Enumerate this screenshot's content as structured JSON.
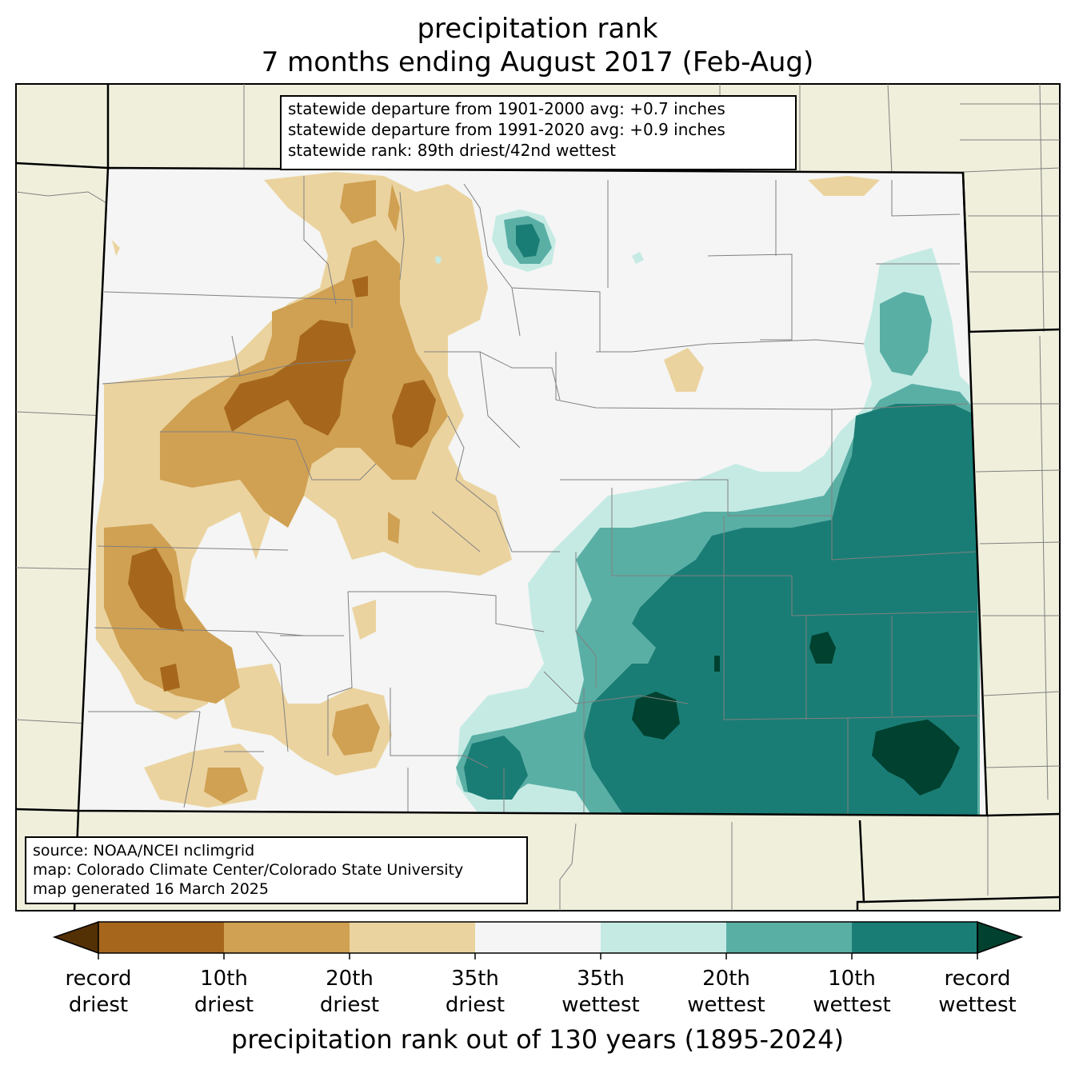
{
  "title": {
    "line1": "precipitation rank",
    "line2": "7 months ending August 2017 (Feb-Aug)"
  },
  "stats_box": {
    "line1": "statewide departure from 1901-2000 avg: +0.7 inches",
    "line2": "statewide departure from 1991-2020 avg: +0.9 inches",
    "line3": "statewide rank: 89th driest/42nd wettest"
  },
  "source_box": {
    "line1": "source: NOAA/NCEI nclimgrid",
    "line2": "map: Colorado Climate Center/Colorado State University",
    "line3": "map generated 16 March 2025"
  },
  "colorbar": {
    "label": "precipitation rank out of 130 years (1895-2024)",
    "colors": {
      "record_driest": "#543005",
      "driest_10": "#a6671c",
      "driest_20": "#d0a153",
      "driest_35": "#ebd39f",
      "neutral": "#f4f5f4",
      "wettest_35": "#c5eae4",
      "wettest_20": "#5aafa5",
      "wettest_10": "#1a7d75",
      "record_wettest": "#00412f"
    },
    "ticks": [
      {
        "top": "record",
        "bottom": "driest"
      },
      {
        "top": "10th",
        "bottom": "driest"
      },
      {
        "top": "20th",
        "bottom": "driest"
      },
      {
        "top": "35th",
        "bottom": "driest"
      },
      {
        "top": "35th",
        "bottom": "wettest"
      },
      {
        "top": "20th",
        "bottom": "wettest"
      },
      {
        "top": "10th",
        "bottom": "wettest"
      },
      {
        "top": "record",
        "bottom": "wettest"
      }
    ]
  },
  "map_colors": {
    "land_outside": "#efefdc",
    "border": "#000000",
    "county_line": "#808080"
  }
}
